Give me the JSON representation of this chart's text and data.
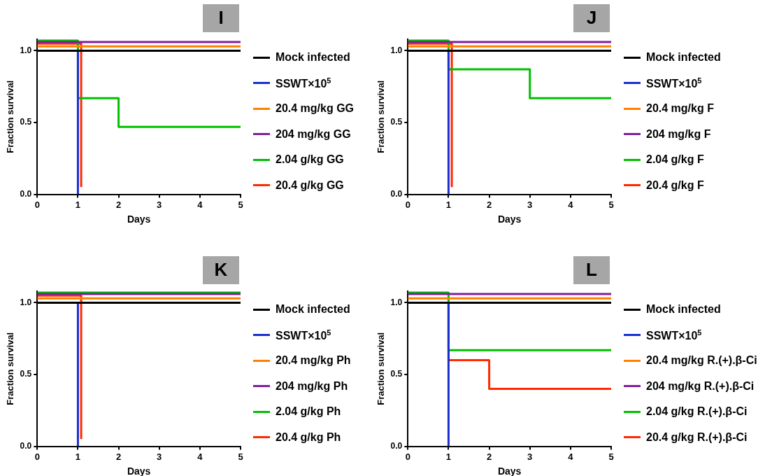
{
  "chart_data": [
    {
      "type": "step",
      "title": "I",
      "xlabel": "Days",
      "ylabel": "Fraction survival",
      "xlim": [
        0,
        5
      ],
      "xticks": [
        0,
        1,
        2,
        3,
        4,
        5
      ],
      "ylim": [
        0,
        1.08
      ],
      "yticks": [
        {
          "value": 0,
          "label": "0.0"
        },
        {
          "value": 0.5,
          "label": "0.5"
        },
        {
          "value": 1,
          "label": "1.0"
        }
      ],
      "grid": false,
      "legend": "right",
      "marker": "none",
      "line_style": "solid",
      "series": [
        {
          "name": "Mock infected",
          "color": "#000000",
          "x": [
            0,
            5
          ],
          "values": [
            1.0,
            1.0
          ]
        },
        {
          "name": "SSWT×10$^{5}$",
          "color": "#1a2fd0",
          "x": [
            0,
            1
          ],
          "values": [
            1.0,
            0
          ]
        },
        {
          "name": "20.4 mg/kg GG",
          "color": "#ff8000",
          "x": [
            0,
            5
          ],
          "values": [
            1.03,
            1.03
          ]
        },
        {
          "name": "204 mg/kg GG",
          "color": "#7f1f9f",
          "x": [
            0,
            5
          ],
          "values": [
            1.06,
            1.06
          ]
        },
        {
          "name": "2.04 g/kg GG",
          "color": "#00c000",
          "x": [
            0,
            1,
            2,
            5
          ],
          "values": [
            1.07,
            0.67,
            0.47,
            0.47
          ]
        },
        {
          "name": "20.4 g/kg GG",
          "color": "#ff2a00",
          "x": [
            0,
            1.08
          ],
          "values": [
            1.05,
            0.05
          ]
        }
      ]
    },
    {
      "type": "step",
      "title": "J",
      "xlabel": "Days",
      "ylabel": "Fraction survival",
      "xlim": [
        0,
        5
      ],
      "xticks": [
        0,
        1,
        2,
        3,
        4,
        5
      ],
      "ylim": [
        0,
        1.08
      ],
      "yticks": [
        {
          "value": 0,
          "label": "0.0"
        },
        {
          "value": 0.5,
          "label": "0.5"
        },
        {
          "value": 1,
          "label": "1.0"
        }
      ],
      "grid": false,
      "legend": "right",
      "marker": "none",
      "line_style": "solid",
      "series": [
        {
          "name": "Mock infected",
          "color": "#000000",
          "x": [
            0,
            5
          ],
          "values": [
            1.0,
            1.0
          ]
        },
        {
          "name": "SSWT×10$^{5}$",
          "color": "#1a2fd0",
          "x": [
            0,
            1
          ],
          "values": [
            1.0,
            0
          ]
        },
        {
          "name": "20.4 mg/kg F",
          "color": "#ff8000",
          "x": [
            0,
            5
          ],
          "values": [
            1.03,
            1.03
          ]
        },
        {
          "name": "204 mg/kg F",
          "color": "#7f1f9f",
          "x": [
            0,
            5
          ],
          "values": [
            1.06,
            1.06
          ]
        },
        {
          "name": "2.04 g/kg F",
          "color": "#00c000",
          "x": [
            0,
            1,
            3,
            5
          ],
          "values": [
            1.07,
            0.87,
            0.67,
            0.67
          ]
        },
        {
          "name": "20.4 g/kg F",
          "color": "#ff2a00",
          "x": [
            0,
            1.08
          ],
          "values": [
            1.05,
            0.05
          ]
        }
      ]
    },
    {
      "type": "step",
      "title": "K",
      "xlabel": "Days",
      "ylabel": "Fraction survival",
      "xlim": [
        0,
        5
      ],
      "xticks": [
        0,
        1,
        2,
        3,
        4,
        5
      ],
      "ylim": [
        0,
        1.08
      ],
      "yticks": [
        {
          "value": 0,
          "label": "0.0"
        },
        {
          "value": 0.5,
          "label": "0.5"
        },
        {
          "value": 1,
          "label": "1.0"
        }
      ],
      "grid": false,
      "legend": "right",
      "marker": "none",
      "line_style": "solid",
      "series": [
        {
          "name": "Mock infected",
          "color": "#000000",
          "x": [
            0,
            5
          ],
          "values": [
            1.0,
            1.0
          ]
        },
        {
          "name": "SSWT×10$^{5}$",
          "color": "#1a2fd0",
          "x": [
            0,
            1
          ],
          "values": [
            1.0,
            0
          ]
        },
        {
          "name": "20.4 mg/kg Ph",
          "color": "#ff8000",
          "x": [
            0,
            5
          ],
          "values": [
            1.03,
            1.03
          ]
        },
        {
          "name": "204 mg/kg Ph",
          "color": "#7f1f9f",
          "x": [
            0,
            5
          ],
          "values": [
            1.06,
            1.06
          ]
        },
        {
          "name": "2.04 g/kg Ph",
          "color": "#00c000",
          "x": [
            0,
            5
          ],
          "values": [
            1.07,
            1.07
          ]
        },
        {
          "name": "20.4 g/kg Ph",
          "color": "#ff2a00",
          "x": [
            0,
            1.08
          ],
          "values": [
            1.05,
            0.05
          ]
        }
      ]
    },
    {
      "type": "step",
      "title": "L",
      "xlabel": "Days",
      "ylabel": "Fraction survival",
      "xlim": [
        0,
        5
      ],
      "xticks": [
        0,
        1,
        2,
        3,
        4,
        5
      ],
      "ylim": [
        0,
        1.08
      ],
      "yticks": [
        {
          "value": 0,
          "label": "0.0"
        },
        {
          "value": 0.5,
          "label": "0.5"
        },
        {
          "value": 1,
          "label": "1.0"
        }
      ],
      "grid": false,
      "legend": "right",
      "marker": "none",
      "line_style": "solid",
      "series": [
        {
          "name": "Mock infected",
          "color": "#000000",
          "x": [
            0,
            5
          ],
          "values": [
            1.0,
            1.0
          ]
        },
        {
          "name": "SSWT×10$^{5}$",
          "color": "#1a2fd0",
          "x": [
            0,
            1
          ],
          "values": [
            1.0,
            0
          ]
        },
        {
          "name": "20.4 mg/kg R.(+).β-Ci",
          "color": "#ff8000",
          "x": [
            0,
            5
          ],
          "values": [
            1.03,
            1.03
          ]
        },
        {
          "name": "204 mg/kg R.(+).β-Ci",
          "color": "#7f1f9f",
          "x": [
            0,
            5
          ],
          "values": [
            1.06,
            1.06
          ]
        },
        {
          "name": "2.04 g/kg R.(+).β-Ci",
          "color": "#00c000",
          "x": [
            0,
            1,
            5
          ],
          "values": [
            1.07,
            0.67,
            0.67
          ]
        },
        {
          "name": "20.4 g/kg R.(+).β-Ci",
          "color": "#ff2a00",
          "x": [
            0,
            1,
            2,
            5
          ],
          "values": [
            1.0,
            0.6,
            0.4,
            0.4
          ]
        }
      ]
    }
  ]
}
